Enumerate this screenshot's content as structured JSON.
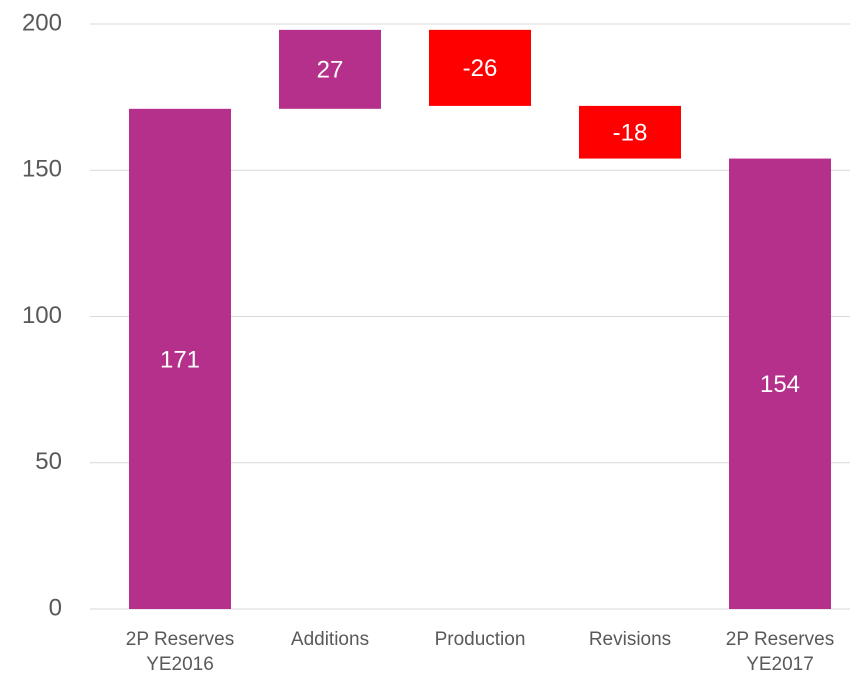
{
  "chart_data": {
    "type": "waterfall",
    "categories": [
      "2P Reserves YE2016",
      "Additions",
      "Production",
      "Revisions",
      "2P Reserves YE2017"
    ],
    "values": [
      171,
      27,
      -26,
      -18,
      154
    ],
    "totals": [
      true,
      false,
      false,
      false,
      true
    ],
    "colors": [
      "#b5308b",
      "#b5308b",
      "#ff0000",
      "#ff0000",
      "#b5308b"
    ],
    "ylim": [
      0,
      200
    ],
    "yticks": [
      0,
      50,
      100,
      150,
      200
    ],
    "grid": true
  }
}
